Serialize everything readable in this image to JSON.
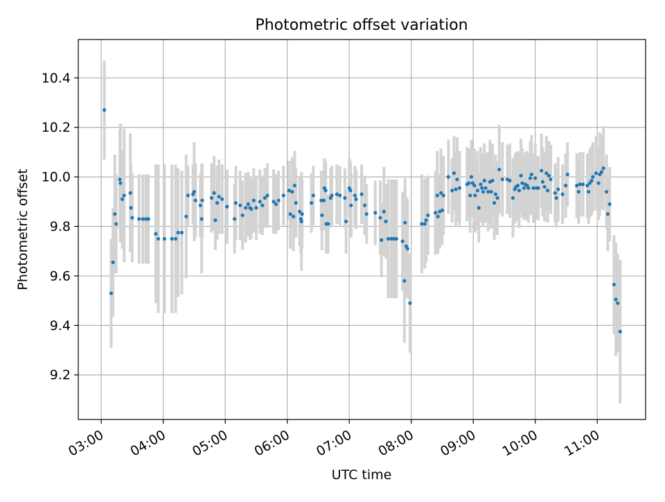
{
  "chart_data": {
    "type": "scatter",
    "title": "Photometric offset variation",
    "xlabel": "UTC time",
    "ylabel": "Photometric offset",
    "x_unit": "hours UTC",
    "xlim": [
      2.63,
      11.78
    ],
    "ylim": [
      9.02,
      10.555
    ],
    "x_ticks": [
      {
        "value": 3,
        "label": "03:00"
      },
      {
        "value": 4,
        "label": "04:00"
      },
      {
        "value": 5,
        "label": "05:00"
      },
      {
        "value": 6,
        "label": "06:00"
      },
      {
        "value": 7,
        "label": "07:00"
      },
      {
        "value": 8,
        "label": "08:00"
      },
      {
        "value": 9,
        "label": "09:00"
      },
      {
        "value": 10,
        "label": "10:00"
      },
      {
        "value": 11,
        "label": "11:00"
      }
    ],
    "y_ticks": [
      {
        "value": 9.2,
        "label": "9.2"
      },
      {
        "value": 9.4,
        "label": "9.4"
      },
      {
        "value": 9.6,
        "label": "9.6"
      },
      {
        "value": 9.8,
        "label": "9.8"
      },
      {
        "value": 10.0,
        "label": "10.0"
      },
      {
        "value": 10.2,
        "label": "10.2"
      },
      {
        "value": 10.4,
        "label": "10.4"
      }
    ],
    "grid": true,
    "marker_color": "#1f77b4",
    "errorbar_color": "#d3d3d3",
    "series": [
      {
        "columns": [
          "utc_hour",
          "offset",
          "error"
        ],
        "points": [
          [
            3.05,
            10.27,
            0.2
          ],
          [
            3.16,
            9.53,
            0.22
          ],
          [
            3.19,
            9.655,
            0.22
          ],
          [
            3.22,
            9.85,
            0.24
          ],
          [
            3.24,
            9.81,
            0.2
          ],
          [
            3.3,
            9.99,
            0.2
          ],
          [
            3.31,
            9.975,
            0.24
          ],
          [
            3.34,
            9.91,
            0.2
          ],
          [
            3.37,
            9.925,
            0.27
          ],
          [
            3.47,
            9.935,
            0.24
          ],
          [
            3.48,
            9.875,
            0.18
          ],
          [
            3.5,
            9.835,
            0.18
          ],
          [
            3.61,
            9.83,
            0.18
          ],
          [
            3.67,
            9.83,
            0.18
          ],
          [
            3.72,
            9.83,
            0.18
          ],
          [
            3.76,
            9.83,
            0.18
          ],
          [
            3.88,
            9.77,
            0.28
          ],
          [
            3.92,
            9.75,
            0.3
          ],
          [
            4.02,
            9.75,
            0.3
          ],
          [
            4.14,
            9.75,
            0.3
          ],
          [
            4.2,
            9.75,
            0.3
          ],
          [
            4.24,
            9.775,
            0.26
          ],
          [
            4.3,
            9.775,
            0.25
          ],
          [
            4.37,
            9.84,
            0.25
          ],
          [
            4.4,
            9.925,
            0.12
          ],
          [
            4.48,
            9.93,
            0.12
          ],
          [
            4.5,
            9.94,
            0.2
          ],
          [
            4.52,
            9.905,
            0.15
          ],
          [
            4.6,
            9.885,
            0.13
          ],
          [
            4.62,
            9.83,
            0.22
          ],
          [
            4.63,
            9.905,
            0.15
          ],
          [
            4.78,
            9.915,
            0.14
          ],
          [
            4.82,
            9.935,
            0.15
          ],
          [
            4.84,
            9.825,
            0.12
          ],
          [
            4.87,
            9.895,
            0.15
          ],
          [
            4.9,
            9.92,
            0.15
          ],
          [
            4.95,
            9.91,
            0.14
          ],
          [
            5.03,
            9.88,
            0.15
          ],
          [
            5.15,
            9.83,
            0.14
          ],
          [
            5.17,
            9.895,
            0.15
          ],
          [
            5.24,
            9.885,
            0.14
          ],
          [
            5.28,
            9.845,
            0.14
          ],
          [
            5.33,
            9.875,
            0.14
          ],
          [
            5.37,
            9.89,
            0.13
          ],
          [
            5.4,
            9.875,
            0.13
          ],
          [
            5.42,
            9.87,
            0.12
          ],
          [
            5.46,
            9.905,
            0.13
          ],
          [
            5.5,
            9.875,
            0.13
          ],
          [
            5.56,
            9.9,
            0.13
          ],
          [
            5.6,
            9.885,
            0.12
          ],
          [
            5.64,
            9.915,
            0.12
          ],
          [
            5.68,
            9.925,
            0.13
          ],
          [
            5.78,
            9.9,
            0.13
          ],
          [
            5.82,
            9.89,
            0.12
          ],
          [
            5.86,
            9.905,
            0.12
          ],
          [
            5.94,
            9.925,
            0.12
          ],
          [
            6.03,
            9.945,
            0.12
          ],
          [
            6.05,
            9.85,
            0.14
          ],
          [
            6.08,
            9.94,
            0.14
          ],
          [
            6.1,
            9.84,
            0.14
          ],
          [
            6.12,
            9.965,
            0.14
          ],
          [
            6.14,
            9.895,
            0.14
          ],
          [
            6.2,
            9.86,
            0.14
          ],
          [
            6.22,
            9.83,
            0.14
          ],
          [
            6.23,
            9.82,
            0.2
          ],
          [
            6.24,
            9.85,
            0.14
          ],
          [
            6.39,
            9.895,
            0.12
          ],
          [
            6.42,
            9.925,
            0.12
          ],
          [
            6.55,
            9.905,
            0.12
          ],
          [
            6.56,
            9.845,
            0.14
          ],
          [
            6.59,
            9.905,
            0.12
          ],
          [
            6.6,
            9.955,
            0.12
          ],
          [
            6.62,
            9.945,
            0.12
          ],
          [
            6.63,
            9.81,
            0.12
          ],
          [
            6.66,
            9.81,
            0.12
          ],
          [
            6.7,
            9.915,
            0.12
          ],
          [
            6.72,
            9.925,
            0.12
          ],
          [
            6.8,
            9.93,
            0.12
          ],
          [
            6.85,
            9.925,
            0.12
          ],
          [
            6.93,
            9.915,
            0.12
          ],
          [
            6.95,
            9.82,
            0.13
          ],
          [
            7.0,
            9.955,
            0.12
          ],
          [
            7.02,
            9.945,
            0.12
          ],
          [
            7.03,
            9.885,
            0.13
          ],
          [
            7.09,
            9.925,
            0.12
          ],
          [
            7.11,
            9.91,
            0.12
          ],
          [
            7.2,
            9.93,
            0.12
          ],
          [
            7.25,
            9.885,
            0.12
          ],
          [
            7.28,
            9.85,
            0.12
          ],
          [
            7.42,
            9.855,
            0.13
          ],
          [
            7.5,
            9.835,
            0.15
          ],
          [
            7.52,
            9.745,
            0.15
          ],
          [
            7.56,
            9.86,
            0.18
          ],
          [
            7.59,
            9.82,
            0.15
          ],
          [
            7.63,
            9.75,
            0.24
          ],
          [
            7.68,
            9.75,
            0.24
          ],
          [
            7.72,
            9.75,
            0.24
          ],
          [
            7.76,
            9.75,
            0.24
          ],
          [
            7.86,
            9.74,
            0.2
          ],
          [
            7.89,
            9.58,
            0.25
          ],
          [
            7.9,
            9.815,
            0.18
          ],
          [
            7.92,
            9.72,
            0.2
          ],
          [
            7.94,
            9.71,
            0.2
          ],
          [
            7.98,
            9.49,
            0.2
          ],
          [
            8.17,
            9.81,
            0.2
          ],
          [
            8.22,
            9.81,
            0.18
          ],
          [
            8.24,
            9.825,
            0.17
          ],
          [
            8.27,
            9.845,
            0.16
          ],
          [
            8.39,
            9.855,
            0.17
          ],
          [
            8.42,
            9.925,
            0.18
          ],
          [
            8.43,
            9.84,
            0.15
          ],
          [
            8.46,
            9.86,
            0.15
          ],
          [
            8.48,
            9.935,
            0.18
          ],
          [
            8.5,
            9.865,
            0.14
          ],
          [
            8.52,
            9.925,
            0.16
          ],
          [
            8.6,
            10.0,
            0.15
          ],
          [
            8.66,
            9.945,
            0.13
          ],
          [
            8.69,
            10.015,
            0.15
          ],
          [
            8.72,
            9.95,
            0.15
          ],
          [
            8.74,
            9.99,
            0.17
          ],
          [
            8.78,
            9.955,
            0.15
          ],
          [
            8.9,
            9.97,
            0.15
          ],
          [
            8.93,
            9.975,
            0.14
          ],
          [
            8.95,
            9.925,
            0.15
          ],
          [
            8.97,
            10.0,
            0.15
          ],
          [
            8.99,
            9.975,
            0.14
          ],
          [
            9.02,
            9.965,
            0.15
          ],
          [
            9.03,
            9.925,
            0.15
          ],
          [
            9.07,
            9.945,
            0.16
          ],
          [
            9.09,
            9.875,
            0.14
          ],
          [
            9.12,
            9.97,
            0.15
          ],
          [
            9.14,
            9.955,
            0.14
          ],
          [
            9.16,
            9.94,
            0.14
          ],
          [
            9.18,
            9.985,
            0.15
          ],
          [
            9.2,
            9.955,
            0.14
          ],
          [
            9.24,
            9.94,
            0.16
          ],
          [
            9.27,
            9.98,
            0.17
          ],
          [
            9.29,
            9.94,
            0.15
          ],
          [
            9.31,
            9.985,
            0.15
          ],
          [
            9.34,
            9.895,
            0.15
          ],
          [
            9.36,
            9.93,
            0.16
          ],
          [
            9.39,
            9.915,
            0.15
          ],
          [
            9.42,
            10.03,
            0.18
          ],
          [
            9.47,
            9.99,
            0.15
          ],
          [
            9.55,
            9.99,
            0.14
          ],
          [
            9.59,
            9.985,
            0.15
          ],
          [
            9.64,
            9.915,
            0.16
          ],
          [
            9.67,
            9.95,
            0.14
          ],
          [
            9.69,
            9.96,
            0.14
          ],
          [
            9.72,
            9.965,
            0.14
          ],
          [
            9.74,
            9.945,
            0.15
          ],
          [
            9.77,
            10.005,
            0.15
          ],
          [
            9.79,
            9.975,
            0.14
          ],
          [
            9.82,
            9.955,
            0.13
          ],
          [
            9.84,
            9.97,
            0.13
          ],
          [
            9.87,
            9.965,
            0.14
          ],
          [
            9.89,
            9.955,
            0.14
          ],
          [
            9.92,
            9.995,
            0.15
          ],
          [
            9.94,
            10.01,
            0.16
          ],
          [
            9.97,
            9.955,
            0.14
          ],
          [
            10.0,
            9.995,
            0.14
          ],
          [
            10.02,
            9.955,
            0.13
          ],
          [
            10.05,
            9.955,
            0.13
          ],
          [
            10.1,
            10.025,
            0.15
          ],
          [
            10.12,
            9.98,
            0.14
          ],
          [
            10.15,
            9.96,
            0.14
          ],
          [
            10.18,
            10.015,
            0.15
          ],
          [
            10.2,
            9.945,
            0.13
          ],
          [
            10.22,
            10.005,
            0.14
          ],
          [
            10.25,
            9.99,
            0.14
          ],
          [
            10.32,
            9.935,
            0.12
          ],
          [
            10.34,
            9.915,
            0.12
          ],
          [
            10.37,
            9.95,
            0.13
          ],
          [
            10.44,
            9.93,
            0.12
          ],
          [
            10.49,
            9.965,
            0.13
          ],
          [
            10.52,
            10.01,
            0.13
          ],
          [
            10.67,
            9.965,
            0.13
          ],
          [
            10.7,
            9.94,
            0.13
          ],
          [
            10.72,
            9.97,
            0.13
          ],
          [
            10.77,
            9.97,
            0.13
          ],
          [
            10.84,
            9.965,
            0.13
          ],
          [
            10.86,
            9.94,
            0.13
          ],
          [
            10.88,
            9.975,
            0.14
          ],
          [
            10.91,
            9.985,
            0.14
          ],
          [
            10.93,
            10.0,
            0.14
          ],
          [
            10.98,
            10.015,
            0.15
          ],
          [
            11.02,
            9.975,
            0.15
          ],
          [
            11.04,
            10.01,
            0.17
          ],
          [
            11.07,
            10.02,
            0.15
          ],
          [
            11.1,
            10.035,
            0.17
          ],
          [
            11.15,
            9.94,
            0.15
          ],
          [
            11.17,
            9.85,
            0.15
          ],
          [
            11.2,
            9.89,
            0.15
          ],
          [
            11.27,
            9.565,
            0.2
          ],
          [
            11.3,
            9.505,
            0.23
          ],
          [
            11.33,
            9.49,
            0.2
          ],
          [
            11.37,
            9.375,
            0.29
          ]
        ]
      }
    ]
  }
}
